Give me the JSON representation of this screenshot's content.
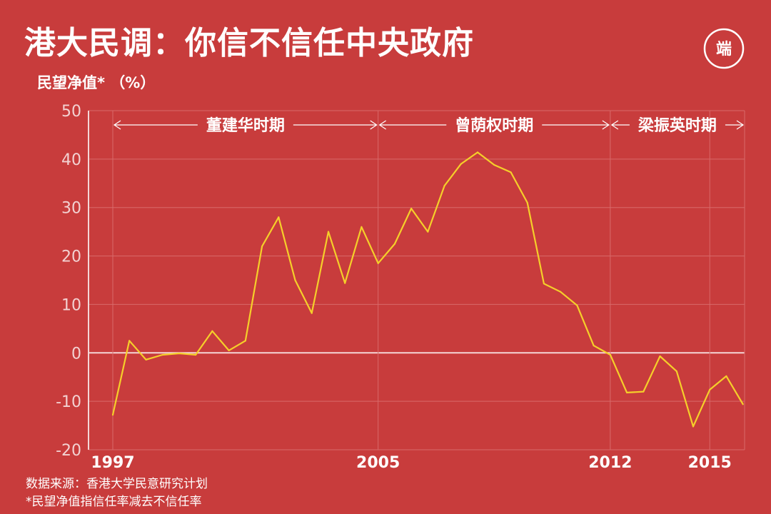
{
  "title": "港大民调：你信不信任中央政府",
  "logo_text": "端",
  "colors": {
    "background": "#c83c3c",
    "line": "#f5cf2a",
    "grid": "#d86a6a",
    "axis": "#f4d6d6"
  },
  "footer": {
    "source": "数据来源：香港大学民意研究计划",
    "note": "*民望净值指信任率减去不信任率"
  },
  "chart_data": {
    "type": "line",
    "ylabel": "民望净值* （%）",
    "xlabel": "",
    "ylim": [
      -20,
      50
    ],
    "yticks": [
      -20,
      -10,
      0,
      10,
      20,
      30,
      40,
      50
    ],
    "xlim": [
      1997,
      2016.05
    ],
    "xticks": [
      {
        "value": 1997,
        "label": "1997"
      },
      {
        "value": 2005,
        "label": "2005"
      },
      {
        "value": 2012,
        "label": "2012"
      },
      {
        "value": 2015,
        "label": "2015"
      }
    ],
    "grid": true,
    "eras": [
      {
        "label": "董建华时期",
        "start": 1997,
        "end": 2005
      },
      {
        "label": "曾荫权时期",
        "start": 2005,
        "end": 2012
      },
      {
        "label": "梁振英时期",
        "start": 2012,
        "end": 2016.05
      }
    ],
    "series": [
      {
        "values": [
          [
            1997.0,
            -12.8
          ],
          [
            1997.5,
            2.5
          ],
          [
            1998.0,
            -1.4
          ],
          [
            1998.5,
            -0.4
          ],
          [
            1999.0,
            -0.1
          ],
          [
            1999.5,
            -0.4
          ],
          [
            2000.0,
            4.5
          ],
          [
            2000.5,
            0.5
          ],
          [
            2001.0,
            2.5
          ],
          [
            2001.5,
            22.0
          ],
          [
            2002.0,
            28.0
          ],
          [
            2002.5,
            15.0
          ],
          [
            2003.0,
            8.2
          ],
          [
            2003.5,
            25.0
          ],
          [
            2004.0,
            14.4
          ],
          [
            2004.5,
            26.0
          ],
          [
            2005.0,
            18.5
          ],
          [
            2005.5,
            22.5
          ],
          [
            2006.0,
            29.8
          ],
          [
            2006.5,
            25.0
          ],
          [
            2007.0,
            34.5
          ],
          [
            2007.5,
            39.0
          ],
          [
            2008.0,
            41.4
          ],
          [
            2008.5,
            38.8
          ],
          [
            2009.0,
            37.3
          ],
          [
            2009.5,
            31.0
          ],
          [
            2010.0,
            14.3
          ],
          [
            2010.5,
            12.6
          ],
          [
            2011.0,
            9.8
          ],
          [
            2011.5,
            1.5
          ],
          [
            2012.0,
            -0.4
          ],
          [
            2012.5,
            -8.2
          ],
          [
            2013.0,
            -8.0
          ],
          [
            2013.5,
            -0.7
          ],
          [
            2014.0,
            -3.8
          ],
          [
            2014.5,
            -15.2
          ],
          [
            2015.0,
            -7.6
          ],
          [
            2015.5,
            -4.8
          ],
          [
            2016.0,
            -10.6
          ]
        ]
      }
    ]
  }
}
